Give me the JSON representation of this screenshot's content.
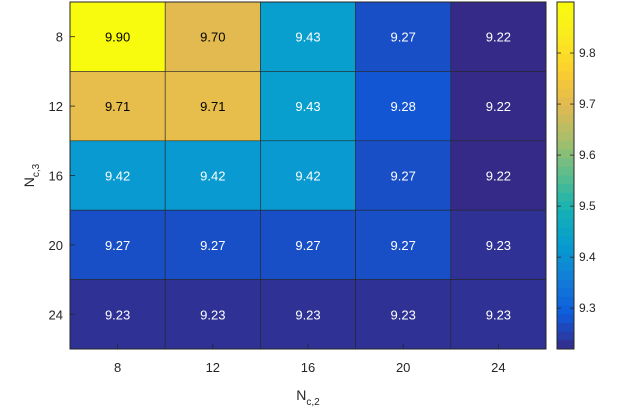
{
  "chart_data": {
    "type": "heatmap",
    "title": "",
    "xlabel": {
      "main": "N",
      "sub": "c,2"
    },
    "ylabel": {
      "main": "N",
      "sub": "c,3"
    },
    "x_categories": [
      "8",
      "12",
      "16",
      "20",
      "24"
    ],
    "y_categories": [
      "8",
      "12",
      "16",
      "20",
      "24"
    ],
    "values": [
      [
        9.9,
        9.7,
        9.43,
        9.27,
        9.22
      ],
      [
        9.71,
        9.71,
        9.43,
        9.28,
        9.22
      ],
      [
        9.42,
        9.42,
        9.42,
        9.27,
        9.22
      ],
      [
        9.27,
        9.27,
        9.27,
        9.27,
        9.23
      ],
      [
        9.23,
        9.23,
        9.23,
        9.23,
        9.23
      ]
    ],
    "value_labels": [
      [
        "9.90",
        "9.70",
        "9.43",
        "9.27",
        "9.22"
      ],
      [
        "9.71",
        "9.71",
        "9.43",
        "9.28",
        "9.22"
      ],
      [
        "9.42",
        "9.42",
        "9.42",
        "9.27",
        "9.22"
      ],
      [
        "9.27",
        "9.27",
        "9.27",
        "9.27",
        "9.23"
      ],
      [
        "9.23",
        "9.23",
        "9.23",
        "9.23",
        "9.23"
      ]
    ],
    "colorbar": {
      "colormap": "parula",
      "range": [
        9.22,
        9.9
      ],
      "ticks": [
        9.3,
        9.4,
        9.5,
        9.6,
        9.7,
        9.8
      ],
      "tick_labels": [
        "9.3",
        "9.4",
        "9.5",
        "9.6",
        "9.7",
        "9.8"
      ]
    },
    "grid": false,
    "legend": "colorbar-right"
  }
}
